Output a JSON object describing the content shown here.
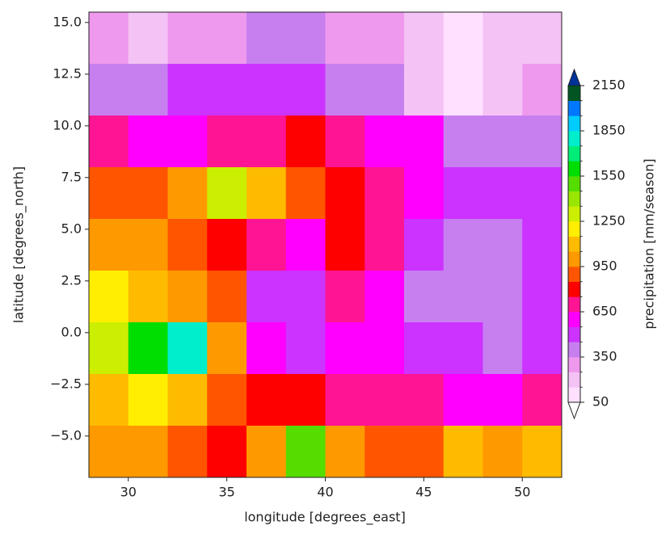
{
  "chart_data": {
    "type": "heatmap",
    "xlabel": "longitude [degrees_east]",
    "ylabel": "latitude [degrees_north]",
    "colorbar_label": "precipitation  [mm/season]",
    "xlim": [
      28,
      52
    ],
    "ylim": [
      -7,
      15.5
    ],
    "xticks": [
      30,
      35,
      40,
      45,
      50
    ],
    "yticks": [
      {
        "value": -5,
        "label": "−5.0"
      },
      {
        "value": -2.5,
        "label": "−2.5"
      },
      {
        "value": 0,
        "label": "0.0"
      },
      {
        "value": 2.5,
        "label": "2.5"
      },
      {
        "value": 5,
        "label": "5.0"
      },
      {
        "value": 7.5,
        "label": "7.5"
      },
      {
        "value": 10,
        "label": "10.0"
      },
      {
        "value": 12.5,
        "label": "12.5"
      },
      {
        "value": 15,
        "label": "15.0"
      }
    ],
    "x": [
      29,
      31,
      33,
      35,
      37,
      39,
      41,
      43,
      45,
      47,
      49,
      51
    ],
    "y": [
      14.25,
      11.75,
      9.25,
      6.75,
      4.25,
      1.75,
      -0.75,
      -3.25,
      -5.75
    ],
    "z": [
      [
        300,
        200,
        250,
        300,
        400,
        400,
        300,
        250,
        150,
        100,
        150,
        200
      ],
      [
        400,
        400,
        450,
        500,
        500,
        450,
        400,
        350,
        150,
        100,
        150,
        250
      ],
      [
        700,
        600,
        600,
        700,
        700,
        800,
        700,
        600,
        550,
        400,
        400,
        350
      ],
      [
        900,
        900,
        1000,
        1300,
        1100,
        900,
        800,
        700,
        600,
        500,
        450,
        500
      ],
      [
        1000,
        1000,
        900,
        800,
        700,
        600,
        800,
        700,
        500,
        400,
        400,
        450
      ],
      [
        1200,
        1100,
        1000,
        900,
        500,
        450,
        650,
        600,
        400,
        400,
        350,
        450
      ],
      [
        1300,
        1600,
        1800,
        1000,
        600,
        500,
        600,
        550,
        450,
        450,
        400,
        500
      ],
      [
        1100,
        1200,
        1100,
        900,
        800,
        800,
        700,
        700,
        650,
        600,
        600,
        700
      ],
      [
        1000,
        950,
        900,
        800,
        1000,
        1500,
        1000,
        900,
        900,
        1100,
        1000,
        1100
      ]
    ],
    "levels": [
      50,
      150,
      250,
      350,
      450,
      550,
      650,
      750,
      850,
      950,
      1050,
      1150,
      1250,
      1350,
      1450,
      1550,
      1650,
      1750,
      1850,
      1950,
      2050,
      2150
    ],
    "colors": [
      "#ffe0ff",
      "#f5c2f5",
      "#ee99ee",
      "#c77ff0",
      "#cc33ff",
      "#ff00ff",
      "#ff1493",
      "#ff0000",
      "#ff5500",
      "#ff9900",
      "#ffbb00",
      "#ffee00",
      "#ccee00",
      "#99e600",
      "#55dd00",
      "#00dd00",
      "#00ee77",
      "#00eecc",
      "#00ccff",
      "#0077ff",
      "#0022aa"
    ],
    "under_color": "#ffffff",
    "over_color": "#003399",
    "top_band_color": "#005522",
    "cbar_ticks": [
      50,
      350,
      650,
      950,
      1250,
      1550,
      1850,
      2150
    ]
  }
}
